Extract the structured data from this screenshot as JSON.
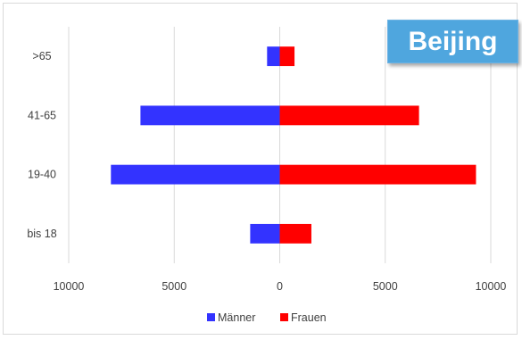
{
  "chart_data": {
    "type": "bar",
    "orientation": "horizontal",
    "title": "Beijing",
    "categories": [
      ">65",
      "41-65",
      "19-40",
      "bis 18"
    ],
    "series": [
      {
        "name": "Männer",
        "values": [
          -600,
          -6600,
          -8000,
          -1400
        ],
        "color": "#3333ff"
      },
      {
        "name": "Frauen",
        "values": [
          700,
          6600,
          9300,
          1500
        ],
        "color": "#ff0000"
      }
    ],
    "xlim": [
      -10000,
      10000
    ],
    "xticks": [
      -10000,
      -5000,
      0,
      5000,
      10000
    ],
    "xtick_labels": [
      "10000",
      "5000",
      "0",
      "5000",
      "10000"
    ],
    "grid": true,
    "legend_position": "bottom"
  }
}
